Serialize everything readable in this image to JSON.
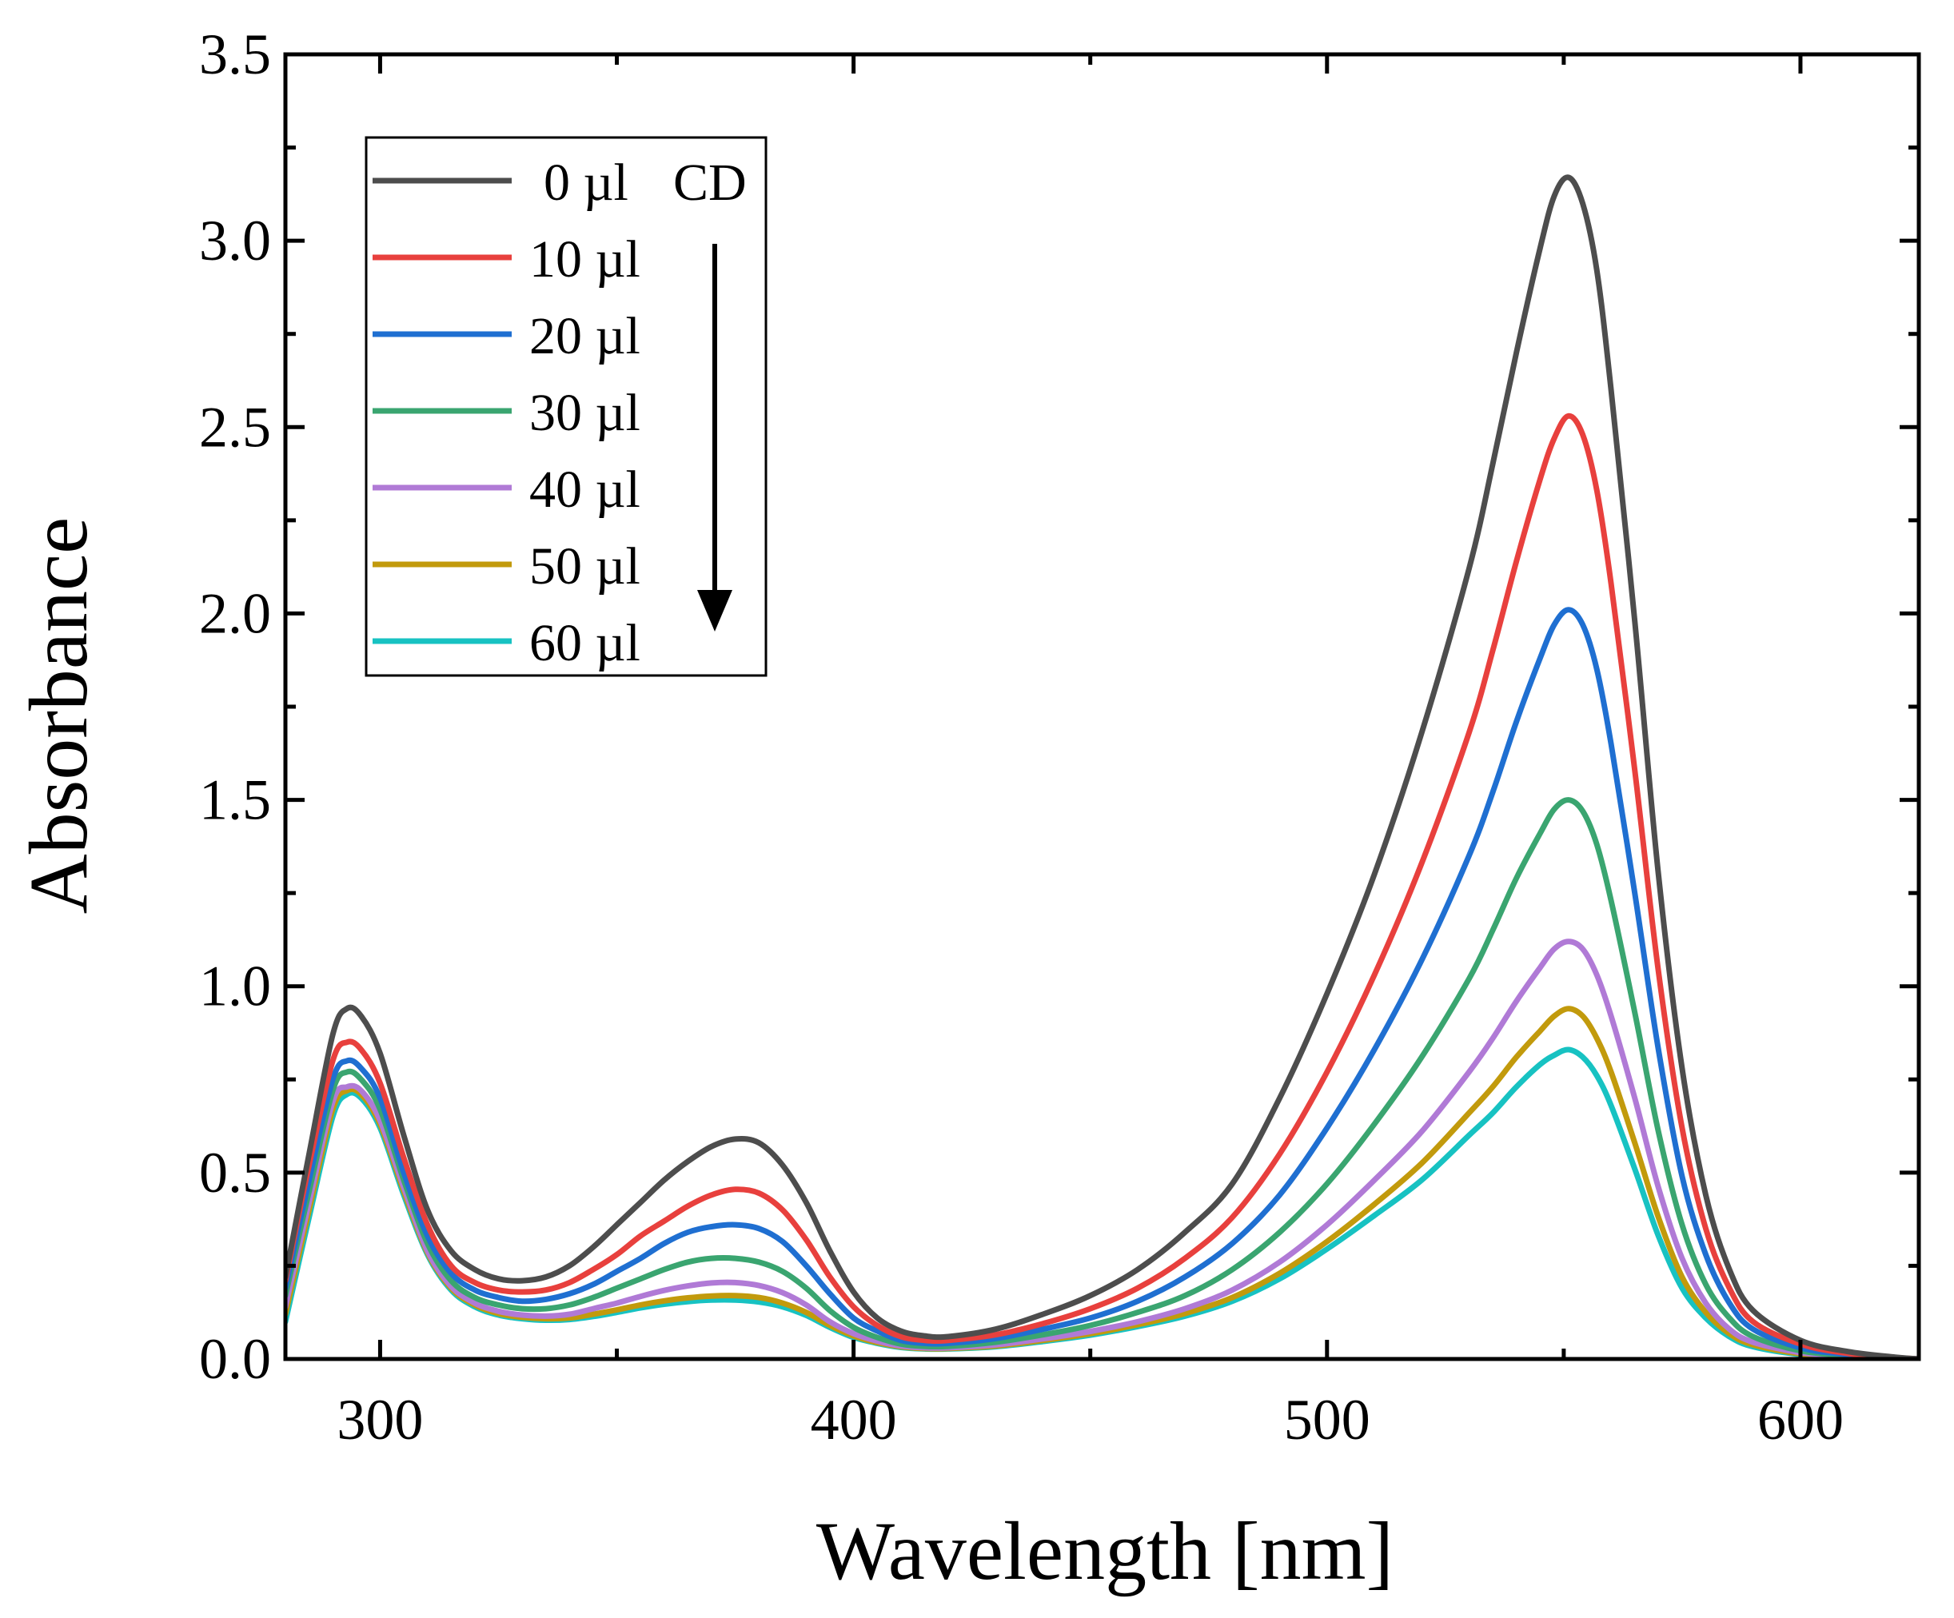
{
  "chart_data": {
    "type": "line",
    "title": "",
    "xlabel": "Wavelength [nm]",
    "ylabel": "Absorbance",
    "xlim": [
      280,
      625
    ],
    "ylim": [
      0,
      3.5
    ],
    "x_ticks": [
      300,
      400,
      500,
      600
    ],
    "x_tick_labels": [
      "300",
      "400",
      "500",
      "600"
    ],
    "y_ticks": [
      0,
      0.5,
      1.0,
      1.5,
      2.0,
      2.5,
      3.0,
      3.5
    ],
    "y_tick_labels": [
      "0.0",
      "0.5",
      "1.0",
      "1.5",
      "2.0",
      "2.5",
      "3.0",
      "3.5"
    ],
    "grid": false,
    "legend_position": "top-left",
    "legend_suffix": "CD",
    "annotation": "downward arrow indicating decreasing absorbance with increasing CD volume",
    "x": [
      280,
      285,
      290,
      293,
      296,
      300,
      305,
      310,
      315,
      320,
      325,
      330,
      335,
      340,
      345,
      350,
      355,
      360,
      365,
      370,
      375,
      380,
      385,
      390,
      395,
      400,
      405,
      410,
      415,
      420,
      430,
      440,
      450,
      460,
      470,
      480,
      490,
      500,
      510,
      520,
      530,
      535,
      540,
      545,
      548,
      551,
      554,
      557,
      560,
      565,
      570,
      575,
      580,
      585,
      590,
      600,
      610,
      620,
      625
    ],
    "series": [
      {
        "name": "0 µl",
        "color": "#4d4d4d",
        "values": [
          0.22,
          0.55,
          0.87,
          0.94,
          0.92,
          0.82,
          0.6,
          0.4,
          0.29,
          0.24,
          0.215,
          0.21,
          0.22,
          0.25,
          0.3,
          0.36,
          0.42,
          0.48,
          0.53,
          0.57,
          0.59,
          0.58,
          0.52,
          0.42,
          0.29,
          0.18,
          0.11,
          0.075,
          0.062,
          0.06,
          0.08,
          0.12,
          0.17,
          0.24,
          0.34,
          0.47,
          0.7,
          0.98,
          1.3,
          1.68,
          2.12,
          2.4,
          2.7,
          2.98,
          3.12,
          3.17,
          3.1,
          2.92,
          2.6,
          1.98,
          1.3,
          0.78,
          0.44,
          0.24,
          0.13,
          0.05,
          0.02,
          0.005,
          0.0
        ]
      },
      {
        "name": "10 µl",
        "color": "#e8403d",
        "values": [
          0.21,
          0.52,
          0.8,
          0.85,
          0.83,
          0.74,
          0.54,
          0.36,
          0.25,
          0.205,
          0.185,
          0.18,
          0.185,
          0.205,
          0.24,
          0.28,
          0.33,
          0.37,
          0.41,
          0.44,
          0.455,
          0.445,
          0.4,
          0.32,
          0.22,
          0.14,
          0.09,
          0.06,
          0.05,
          0.05,
          0.065,
          0.095,
          0.135,
          0.19,
          0.27,
          0.38,
          0.55,
          0.77,
          1.03,
          1.33,
          1.68,
          1.9,
          2.14,
          2.36,
          2.47,
          2.53,
          2.48,
          2.33,
          2.08,
          1.58,
          1.04,
          0.62,
          0.35,
          0.19,
          0.1,
          0.04,
          0.015,
          0.004,
          0.0
        ]
      },
      {
        "name": "20 µl",
        "color": "#1f6fd1",
        "values": [
          0.19,
          0.48,
          0.75,
          0.8,
          0.78,
          0.7,
          0.5,
          0.33,
          0.23,
          0.185,
          0.165,
          0.155,
          0.16,
          0.175,
          0.2,
          0.235,
          0.27,
          0.31,
          0.34,
          0.355,
          0.36,
          0.35,
          0.315,
          0.25,
          0.175,
          0.11,
          0.075,
          0.05,
          0.042,
          0.042,
          0.055,
          0.08,
          0.11,
          0.155,
          0.22,
          0.31,
          0.44,
          0.62,
          0.83,
          1.07,
          1.35,
          1.52,
          1.71,
          1.88,
          1.97,
          2.01,
          1.97,
          1.85,
          1.65,
          1.25,
          0.83,
          0.49,
          0.28,
          0.15,
          0.08,
          0.03,
          0.012,
          0.003,
          0.0
        ]
      },
      {
        "name": "30 µl",
        "color": "#3aa570",
        "values": [
          0.17,
          0.45,
          0.72,
          0.77,
          0.75,
          0.67,
          0.48,
          0.31,
          0.21,
          0.165,
          0.145,
          0.135,
          0.135,
          0.145,
          0.165,
          0.19,
          0.215,
          0.24,
          0.26,
          0.27,
          0.27,
          0.26,
          0.235,
          0.19,
          0.13,
          0.085,
          0.058,
          0.04,
          0.034,
          0.034,
          0.045,
          0.065,
          0.09,
          0.125,
          0.17,
          0.24,
          0.34,
          0.47,
          0.63,
          0.81,
          1.02,
          1.15,
          1.29,
          1.41,
          1.475,
          1.5,
          1.47,
          1.38,
          1.23,
          0.93,
          0.61,
          0.36,
          0.2,
          0.11,
          0.06,
          0.022,
          0.009,
          0.002,
          0.0
        ]
      },
      {
        "name": "40 µl",
        "color": "#b07ad6",
        "values": [
          0.14,
          0.42,
          0.69,
          0.73,
          0.72,
          0.64,
          0.46,
          0.29,
          0.195,
          0.15,
          0.128,
          0.118,
          0.115,
          0.12,
          0.135,
          0.15,
          0.168,
          0.184,
          0.196,
          0.204,
          0.205,
          0.197,
          0.178,
          0.145,
          0.1,
          0.068,
          0.048,
          0.035,
          0.03,
          0.03,
          0.038,
          0.054,
          0.074,
          0.1,
          0.135,
          0.185,
          0.26,
          0.36,
          0.48,
          0.61,
          0.77,
          0.86,
          0.96,
          1.05,
          1.1,
          1.12,
          1.1,
          1.03,
          0.92,
          0.7,
          0.46,
          0.27,
          0.15,
          0.08,
          0.045,
          0.017,
          0.007,
          0.002,
          0.0
        ]
      },
      {
        "name": "50 µl",
        "color": "#c29a0c",
        "values": [
          0.12,
          0.4,
          0.67,
          0.72,
          0.71,
          0.63,
          0.45,
          0.285,
          0.19,
          0.145,
          0.122,
          0.112,
          0.108,
          0.11,
          0.12,
          0.132,
          0.145,
          0.156,
          0.164,
          0.169,
          0.17,
          0.165,
          0.15,
          0.125,
          0.09,
          0.062,
          0.044,
          0.033,
          0.028,
          0.028,
          0.035,
          0.05,
          0.068,
          0.092,
          0.122,
          0.165,
          0.23,
          0.315,
          0.415,
          0.525,
          0.66,
          0.73,
          0.81,
          0.88,
          0.92,
          0.94,
          0.92,
          0.86,
          0.77,
          0.58,
          0.38,
          0.22,
          0.125,
          0.068,
          0.038,
          0.014,
          0.006,
          0.001,
          0.0
        ]
      },
      {
        "name": "60 µl",
        "color": "#17c2c2",
        "values": [
          0.1,
          0.38,
          0.65,
          0.71,
          0.7,
          0.62,
          0.44,
          0.28,
          0.185,
          0.14,
          0.118,
          0.108,
          0.104,
          0.106,
          0.114,
          0.125,
          0.137,
          0.147,
          0.154,
          0.158,
          0.158,
          0.153,
          0.14,
          0.117,
          0.085,
          0.058,
          0.042,
          0.031,
          0.027,
          0.027,
          0.033,
          0.047,
          0.064,
          0.087,
          0.115,
          0.155,
          0.215,
          0.295,
          0.385,
          0.48,
          0.6,
          0.66,
          0.73,
          0.79,
          0.815,
          0.83,
          0.81,
          0.76,
          0.68,
          0.51,
          0.33,
          0.19,
          0.11,
          0.06,
          0.033,
          0.012,
          0.005,
          0.001,
          0.0
        ]
      }
    ]
  }
}
